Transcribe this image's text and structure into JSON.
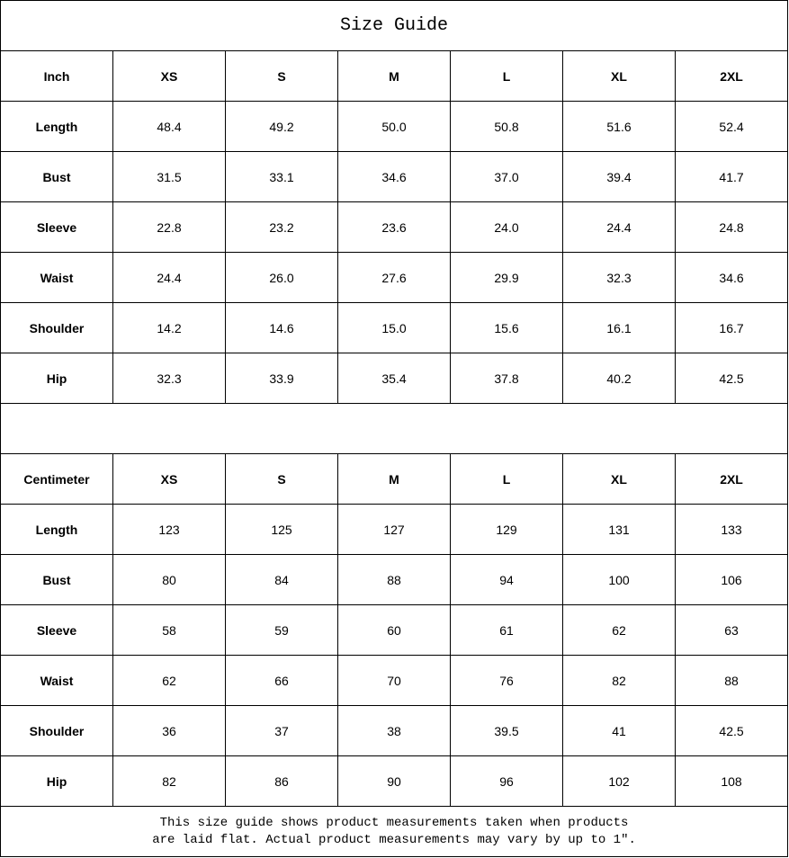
{
  "title": "Size Guide",
  "sizes": [
    "XS",
    "S",
    "M",
    "L",
    "XL",
    "2XL"
  ],
  "tables": [
    {
      "unit": "Inch",
      "rows": [
        {
          "label": "Length",
          "values": [
            "48.4",
            "49.2",
            "50.0",
            "50.8",
            "51.6",
            "52.4"
          ]
        },
        {
          "label": "Bust",
          "values": [
            "31.5",
            "33.1",
            "34.6",
            "37.0",
            "39.4",
            "41.7"
          ]
        },
        {
          "label": "Sleeve",
          "values": [
            "22.8",
            "23.2",
            "23.6",
            "24.0",
            "24.4",
            "24.8"
          ]
        },
        {
          "label": "Waist",
          "values": [
            "24.4",
            "26.0",
            "27.6",
            "29.9",
            "32.3",
            "34.6"
          ]
        },
        {
          "label": "Shoulder",
          "values": [
            "14.2",
            "14.6",
            "15.0",
            "15.6",
            "16.1",
            "16.7"
          ]
        },
        {
          "label": "Hip",
          "values": [
            "32.3",
            "33.9",
            "35.4",
            "37.8",
            "40.2",
            "42.5"
          ]
        }
      ]
    },
    {
      "unit": "Centimeter",
      "rows": [
        {
          "label": "Length",
          "values": [
            "123",
            "125",
            "127",
            "129",
            "131",
            "133"
          ]
        },
        {
          "label": "Bust",
          "values": [
            "80",
            "84",
            "88",
            "94",
            "100",
            "106"
          ]
        },
        {
          "label": "Sleeve",
          "values": [
            "58",
            "59",
            "60",
            "61",
            "62",
            "63"
          ]
        },
        {
          "label": "Waist",
          "values": [
            "62",
            "66",
            "70",
            "76",
            "82",
            "88"
          ]
        },
        {
          "label": "Shoulder",
          "values": [
            "36",
            "37",
            "38",
            "39.5",
            "41",
            "42.5"
          ]
        },
        {
          "label": "Hip",
          "values": [
            "82",
            "86",
            "90",
            "96",
            "102",
            "108"
          ]
        }
      ]
    }
  ],
  "footer": {
    "line1": "This size guide shows product measurements taken when products",
    "line2": "are laid flat. Actual product measurements may vary by up to 1″."
  }
}
